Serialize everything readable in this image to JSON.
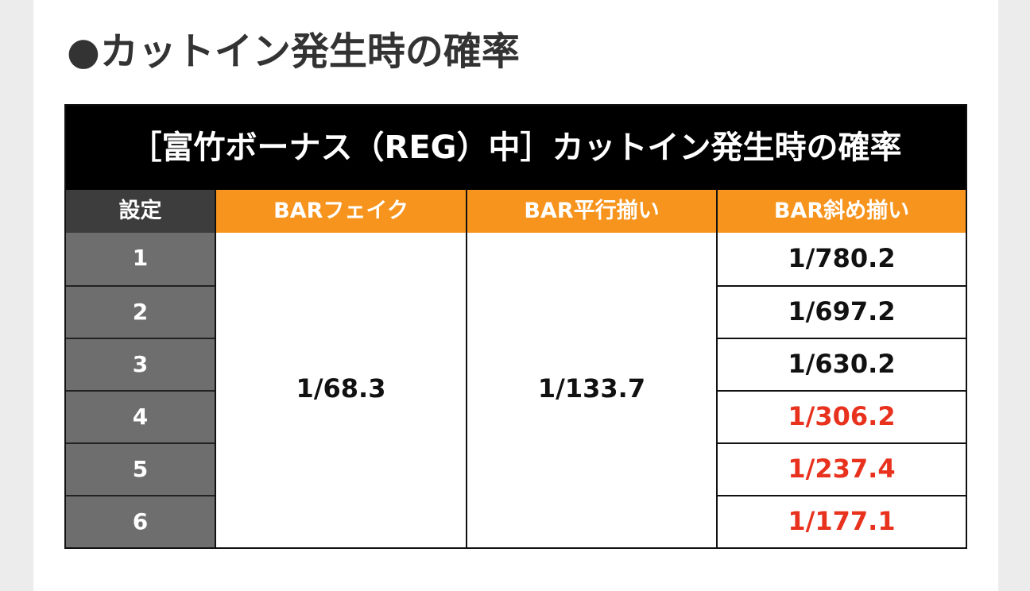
{
  "page_heading": "●カットイン発生時の確率",
  "table": {
    "title": "［富竹ボーナス（REG）中］カットイン発生時の確率",
    "headers": {
      "setting": "設定",
      "bar_fake": "BARフェイク",
      "bar_parallel": "BAR平行揃い",
      "bar_diagonal": "BAR斜め揃い"
    },
    "settings": [
      "1",
      "2",
      "3",
      "4",
      "5",
      "6"
    ],
    "bar_fake_all": "1/68.3",
    "bar_parallel_all": "1/133.7",
    "bar_diagonal": [
      "1/780.2",
      "1/697.2",
      "1/630.2",
      "1/306.2",
      "1/237.4",
      "1/177.1"
    ]
  },
  "colors": {
    "header_orange": "#f7941d",
    "title_black": "#000000",
    "setting_gray": "#6e6e6e",
    "highlight_red": "#e8321e",
    "normal_text": "#111111"
  }
}
